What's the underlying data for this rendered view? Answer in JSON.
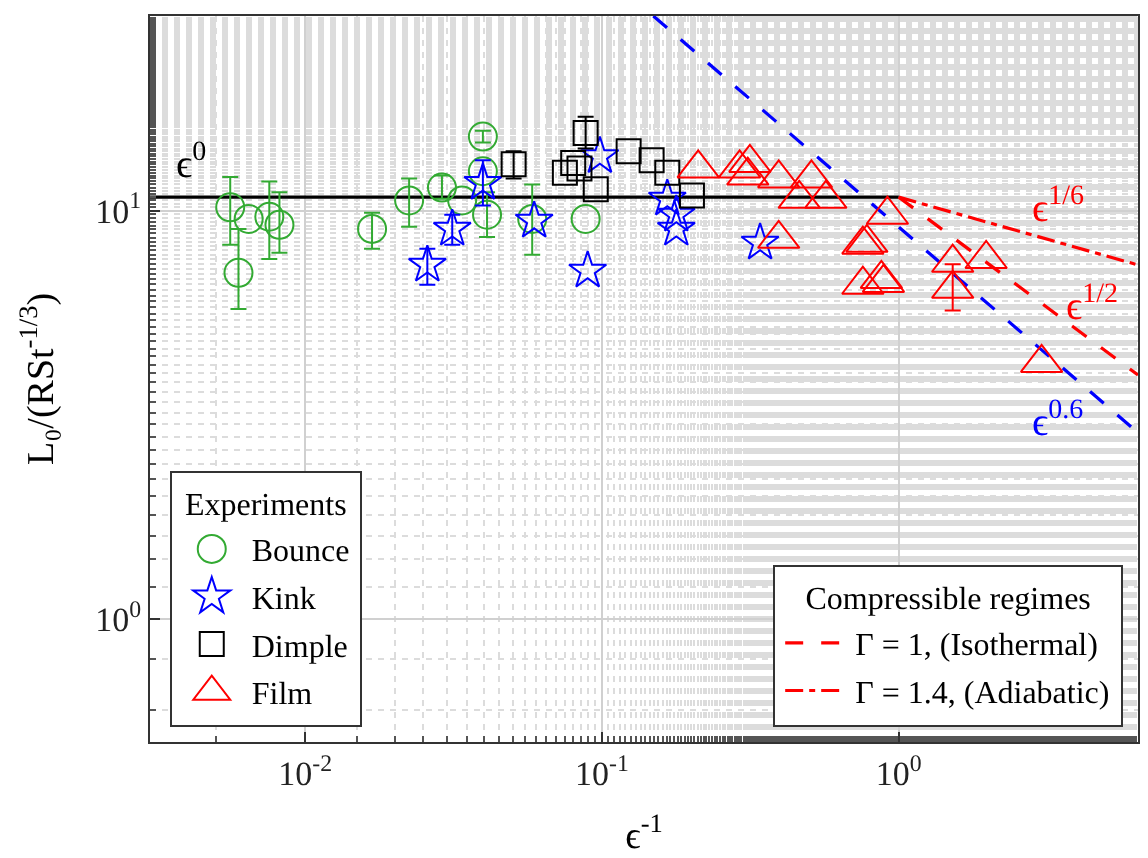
{
  "chart_data": {
    "type": "scatter",
    "xlabel": "ϵ$^{-1}$",
    "ylabel": "L₀/(RSt$^{-1/3}$)",
    "log": "xy",
    "grid": true,
    "legend": "bottom",
    "xlim": [
      0.003,
      6.4
    ],
    "ylim": [
      0.5,
      30
    ],
    "xticks": [
      {
        "value": 0.01,
        "label": "10$^{-2}$"
      },
      {
        "value": 0.1,
        "label": "10$^{-1}$"
      },
      {
        "value": 1,
        "label": "10$^{0}$"
      }
    ],
    "yticks": [
      {
        "value": 1,
        "label": "10$^{0}$"
      },
      {
        "value": 10,
        "label": "10$^{1}$"
      }
    ],
    "legend_title": [
      "Experiments",
      "Compressible regimes"
    ],
    "series": [
      {
        "type": "line",
        "color": "#000000",
        "line_style": "solid",
        "marker": "none",
        "x": [
          0.003,
          1
        ],
        "values": [
          10.8,
          10.8
        ]
      },
      {
        "type": "line",
        "color": "#0000ff",
        "line_style": "dashed",
        "marker": "none",
        "x": [
          0.149,
          6.4
        ],
        "values": [
          30,
          2.86
        ]
      },
      {
        "name": "Bounce",
        "color": "#33aa33",
        "marker": "circle",
        "x": [
          0.00559,
          0.00596,
          0.00645,
          0.00757,
          0.00819,
          0.0168,
          0.0224,
          0.0289,
          0.0338,
          0.0397,
          0.0397,
          0.041,
          0.0582,
          0.0881
        ],
        "values": [
          10.2,
          7.05,
          9.55,
          9.67,
          9.24,
          9.03,
          10.6,
          11.4,
          10.6,
          15.2,
          12.5,
          9.78,
          9.55,
          9.55
        ],
        "errors": [
          [
            8.26,
            12.1
          ],
          [
            5.75,
            9.03
          ],
          null,
          [
            7.62,
            11.8
          ],
          [
            7.89,
            11.1
          ],
          [
            8.07,
            9.89
          ],
          [
            9.14,
            12.0
          ],
          [
            10.7,
            12.2
          ],
          null,
          [
            14.7,
            15.7
          ],
          null,
          [
            8.63,
            11.1
          ],
          [
            7.8,
            11.6
          ],
          null
        ]
      },
      {
        "name": "Kink",
        "color": "#0000ff",
        "marker": "star",
        "x": [
          0.0258,
          0.0313,
          0.0397,
          0.0591,
          0.0895,
          0.0984,
          0.166,
          0.178,
          0.178,
          0.341
        ],
        "values": [
          7.37,
          9.03,
          11.7,
          9.45,
          7.13,
          13.6,
          10.7,
          9.78,
          9.03,
          8.35
        ],
        "errors": [
          [
            6.59,
            8.07
          ],
          [
            8.26,
            9.78
          ],
          [
            10.3,
            13.3
          ],
          null,
          null,
          null,
          null,
          null,
          null,
          null
        ]
      },
      {
        "name": "Dimple",
        "color": "#000000",
        "marker": "square",
        "x": [
          0.0504,
          0.075,
          0.08,
          0.084,
          0.0881,
          0.0953,
          0.123,
          0.147,
          0.166,
          0.201
        ],
        "values": [
          13.0,
          12.4,
          13.1,
          12.7,
          15.5,
          11.3,
          14.0,
          13.3,
          12.4,
          10.9
        ],
        "errors": [
          [
            12.0,
            14.0
          ],
          null,
          null,
          null,
          [
            14.2,
            17.0
          ],
          null,
          null,
          null,
          null,
          null
        ]
      },
      {
        "name": "Film",
        "color": "#ff0000",
        "marker": "triangle",
        "x": [
          0.211,
          0.291,
          0.315,
          0.31,
          0.394,
          0.508,
          0.462,
          0.568,
          0.394,
          0.757,
          0.757,
          0.874,
          0.916,
          0.781,
          0.888,
          1.52,
          1.52,
          1.97,
          3.03
        ],
        "values": [
          12.7,
          12.7,
          13.1,
          12.2,
          12.0,
          12.0,
          10.7,
          10.7,
          8.54,
          8.26,
          6.59,
          6.81,
          9.78,
          8.35,
          6.66,
          7.46,
          6.44,
          7.62,
          4.24
        ],
        "errors": [
          null,
          null,
          null,
          null,
          null,
          null,
          null,
          null,
          null,
          null,
          null,
          null,
          null,
          null,
          null,
          null,
          [
            5.7,
            7.4
          ],
          null,
          null
        ]
      },
      {
        "type": "line",
        "name": "Γ = 1, (Isothermal)",
        "color": "#ff0000",
        "line_style": "dashed",
        "marker": "none",
        "x": [
          1,
          6.4
        ],
        "values": [
          10.8,
          3.96
        ]
      },
      {
        "type": "line",
        "name": "Γ = 1.4, (Adiabatic)",
        "color": "#ff0000",
        "line_style": "dashdot",
        "marker": "none",
        "x": [
          1,
          6.4
        ],
        "values": [
          10.8,
          7.37
        ]
      }
    ],
    "annotations": [
      {
        "text": "ϵ$^{0}$",
        "x": 0.0041,
        "y": 10.8
      },
      {
        "text": "ϵ$^{1/6}$",
        "x": 3.44,
        "y": 8.37
      },
      {
        "text": "ϵ$^{1/2}$",
        "x": 4.5,
        "y": 4.8
      },
      {
        "text": "ϵ$^{0.6}$",
        "x": 3.44,
        "y": 4.22
      }
    ]
  }
}
